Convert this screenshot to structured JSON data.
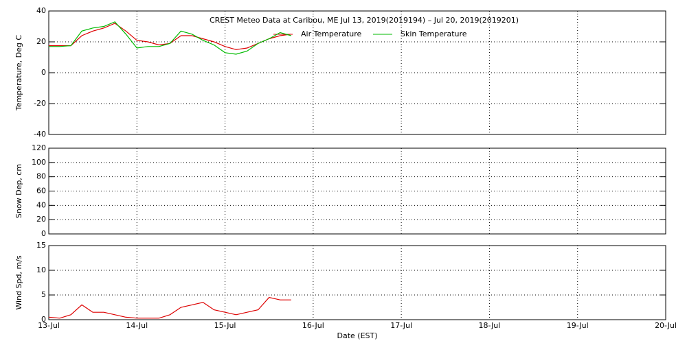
{
  "chart_data": [
    {
      "type": "line",
      "title": "CREST Meteo Data at Caribou, ME   Jul 13, 2019(2019194) – Jul 20, 2019(2019201)",
      "ylabel": "Temperature, Deg C",
      "ylim": [
        -40,
        40
      ],
      "yticks": [
        -40,
        -20,
        0,
        20,
        40
      ],
      "grid": true,
      "x": [
        0,
        0.125,
        0.25,
        0.375,
        0.5,
        0.625,
        0.75,
        0.875,
        1,
        1.125,
        1.25,
        1.375,
        1.5,
        1.625,
        1.75,
        1.875,
        2,
        2.125,
        2.25,
        2.375,
        2.5,
        2.625,
        2.75
      ],
      "series": [
        {
          "name": "Air Temperature",
          "color": "#dd0000",
          "values": [
            17.5,
            17.5,
            17.5,
            24,
            27,
            29,
            32,
            27,
            21,
            20,
            18,
            19,
            24,
            24,
            22,
            20,
            17,
            15,
            16,
            19,
            22,
            24,
            25
          ]
        },
        {
          "name": "Skin Temperature",
          "color": "#00bb00",
          "values": [
            17,
            17,
            17.5,
            27,
            29,
            30,
            33,
            25,
            16,
            17,
            17,
            19,
            27,
            25,
            21,
            18,
            13,
            12,
            14,
            19,
            22,
            26,
            24
          ]
        }
      ]
    },
    {
      "type": "line",
      "ylabel": "Snow Dep, cm",
      "ylim": [
        0,
        120
      ],
      "yticks": [
        0,
        20,
        40,
        60,
        80,
        100,
        120
      ],
      "grid": true,
      "x": [],
      "series": []
    },
    {
      "type": "line",
      "ylabel": "Wind Spd, m/s",
      "xlabel": "Date (EST)",
      "ylim": [
        0,
        15
      ],
      "yticks": [
        0,
        5,
        10,
        15
      ],
      "grid": true,
      "xlim": [
        0,
        7
      ],
      "xticks": [
        {
          "value": 0,
          "label": "13-Jul"
        },
        {
          "value": 1,
          "label": "14-Jul"
        },
        {
          "value": 2,
          "label": "15-Jul"
        },
        {
          "value": 3,
          "label": "16-Jul"
        },
        {
          "value": 4,
          "label": "17-Jul"
        },
        {
          "value": 5,
          "label": "18-Jul"
        },
        {
          "value": 6,
          "label": "19-Jul"
        },
        {
          "value": 7,
          "label": "20-Jul"
        }
      ],
      "x": [
        0,
        0.125,
        0.25,
        0.375,
        0.5,
        0.625,
        0.75,
        0.875,
        1,
        1.125,
        1.25,
        1.375,
        1.5,
        1.625,
        1.75,
        1.875,
        2,
        2.125,
        2.25,
        2.375,
        2.5,
        2.625,
        2.75
      ],
      "series": [
        {
          "name": "Wind Speed",
          "color": "#dd0000",
          "values": [
            0.5,
            0.3,
            1,
            3,
            1.5,
            1.5,
            1,
            0.5,
            0.3,
            0.3,
            0.3,
            1,
            2.5,
            3,
            3.5,
            2,
            1.5,
            1,
            1.5,
            2,
            4.5,
            4,
            4
          ]
        }
      ]
    }
  ]
}
